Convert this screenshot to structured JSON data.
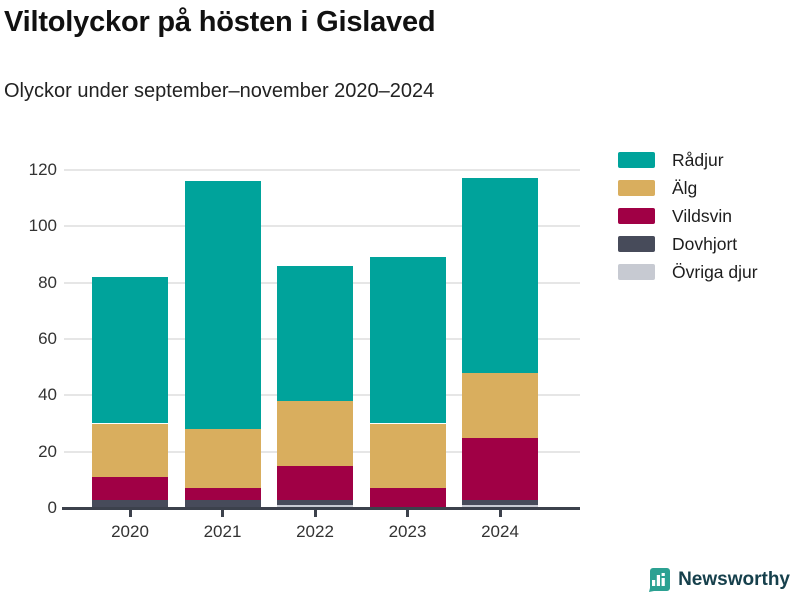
{
  "header": {
    "title": "Viltolyckor på hösten i Gislaved",
    "subtitle": "Olyckor under september–november 2020–2024"
  },
  "chart_data": {
    "type": "bar",
    "stacked": true,
    "title": "Viltolyckor på hösten i Gislaved",
    "subtitle": "Olyckor under september–november 2020–2024",
    "categories": [
      "2020",
      "2021",
      "2022",
      "2023",
      "2024"
    ],
    "series": [
      {
        "name": "Rådjur",
        "color": "#00A39B",
        "values": [
          52,
          88,
          48,
          59,
          69
        ]
      },
      {
        "name": "Älg",
        "color": "#D9AE5E",
        "values": [
          19,
          21,
          23,
          23,
          23
        ]
      },
      {
        "name": "Vildsvin",
        "color": "#A00045",
        "values": [
          8,
          4,
          12,
          7,
          22
        ]
      },
      {
        "name": "Dovhjort",
        "color": "#474B5A",
        "values": [
          3,
          3,
          2,
          0,
          2
        ]
      },
      {
        "name": "Övriga djur",
        "color": "#C7CAD2",
        "values": [
          0,
          0,
          1,
          0,
          1
        ]
      }
    ],
    "totals": [
      82,
      116,
      86,
      89,
      117
    ],
    "y_ticks": [
      0,
      20,
      40,
      60,
      80,
      100,
      120
    ],
    "ylim": [
      0,
      120
    ],
    "xlabel": "",
    "ylabel": "",
    "grid": true,
    "legend_position": "right"
  },
  "footer": {
    "brand": "Newsworthy",
    "logo_color": "#2CA192",
    "text_color": "#16404C"
  }
}
